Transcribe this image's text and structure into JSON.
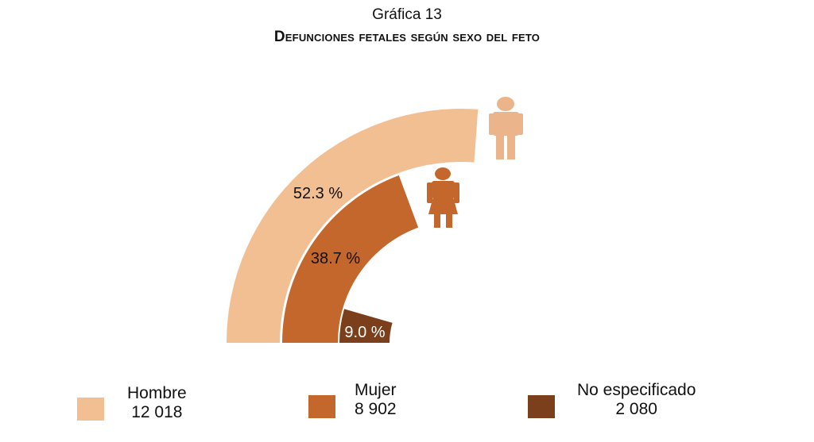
{
  "title": {
    "label": "Gráfica 13",
    "subtitle": "Defunciones fetales según sexo del feto"
  },
  "chart_data": {
    "type": "radial-bar",
    "title": "Defunciones fetales según sexo del feto",
    "unit": "%",
    "full_scale_percent": 100,
    "series": [
      {
        "name": "Hombre",
        "count": 12018,
        "count_label": "12 018",
        "percent": 52.3,
        "percent_label": "52.3 %",
        "color": "#F2BF93",
        "icon": "man-icon"
      },
      {
        "name": "Mujer",
        "count": 8902,
        "count_label": "8 902",
        "percent": 38.7,
        "percent_label": "38.7 %",
        "color": "#C4672D",
        "icon": "woman-icon"
      },
      {
        "name": "No especificado",
        "count": 2080,
        "count_label": "2 080",
        "percent": 9.0,
        "percent_label": "9.0 %",
        "color": "#7B3F1C"
      }
    ],
    "legend_position": "bottom"
  }
}
